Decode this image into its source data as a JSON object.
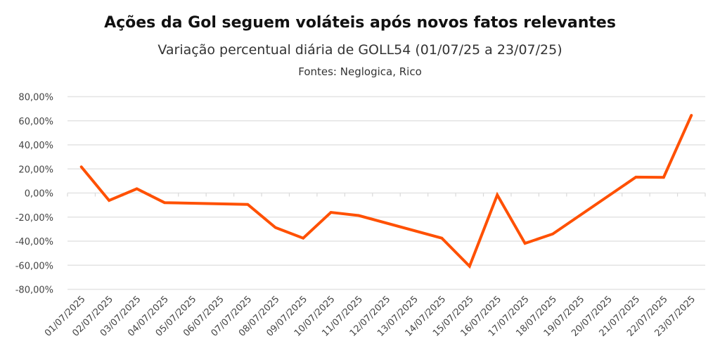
{
  "chart_data": {
    "type": "line",
    "title": "Ações da Gol seguem voláteis após novos fatos relevantes",
    "subtitle": "Variação percentual diária de GOLL54 (01/07/25 a 23/07/25)",
    "source": "Fontes: Neglogica, Rico",
    "xlabel": "",
    "ylabel": "",
    "categories": [
      "01/07/2025",
      "02/07/2025",
      "03/07/2025",
      "04/07/2025",
      "05/07/2025",
      "06/07/2025",
      "07/07/2025",
      "08/07/2025",
      "09/07/2025",
      "10/07/2025",
      "11/07/2025",
      "12/07/2025",
      "13/07/2025",
      "14/07/2025",
      "15/07/2025",
      "16/07/2025",
      "17/07/2025",
      "18/07/2025",
      "19/07/2025",
      "20/07/2025",
      "21/07/2025",
      "22/07/2025",
      "23/07/2025"
    ],
    "values": [
      21.7,
      -6.2,
      3.5,
      -8.0,
      null,
      null,
      -9.5,
      -28.7,
      -37.5,
      -16.1,
      -18.7,
      null,
      null,
      -37.5,
      -60.8,
      -1.6,
      -41.8,
      -34.0,
      null,
      null,
      13.2,
      13.0,
      64.5
    ],
    "ylim": [
      -80,
      80
    ],
    "yticks": [
      "80,00%",
      "60,00%",
      "40,00%",
      "20,00%",
      "0,00%",
      "-20,00%",
      "-40,00%",
      "-60,00%",
      "-80,00%"
    ],
    "ytick_values": [
      80,
      60,
      40,
      20,
      0,
      -20,
      -40,
      -60,
      -80
    ],
    "grid": true,
    "line_color": "#FF5000",
    "grid_color": "#E3E3E3"
  }
}
